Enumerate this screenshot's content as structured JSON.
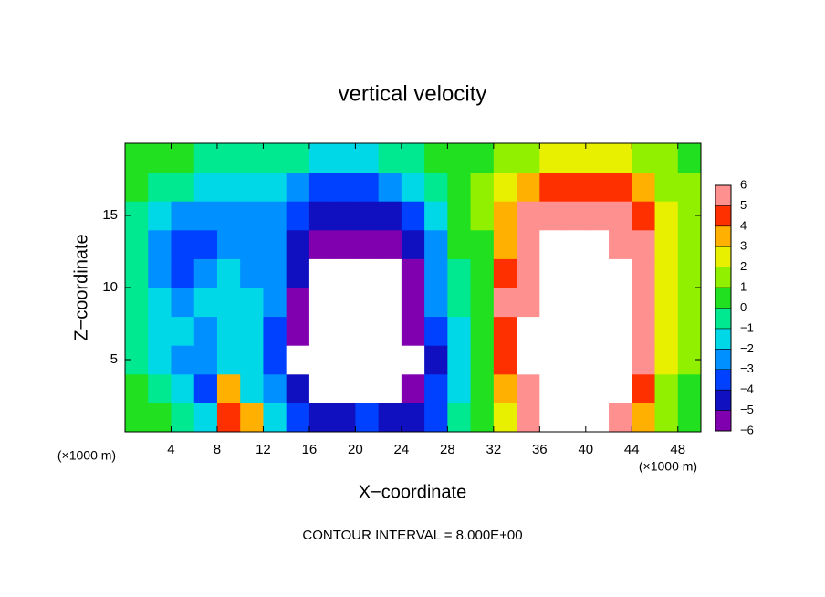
{
  "chart_data": {
    "type": "contour",
    "title": "vertical velocity",
    "x_label": "X−coordinate",
    "y_label": "Z−coordinate",
    "x_unit_left": "(×1000 m)",
    "x_unit_right": "(×1000 m)",
    "footer": "CONTOUR INTERVAL = 8.000E+00",
    "xlim": [
      0,
      50
    ],
    "ylim": [
      0,
      20
    ],
    "xticks": [
      4,
      8,
      12,
      16,
      20,
      24,
      28,
      32,
      36,
      40,
      44,
      48
    ],
    "yticks": [
      5,
      10,
      15
    ],
    "x": [
      1,
      3,
      5,
      7,
      9,
      11,
      13,
      15,
      17,
      19,
      21,
      23,
      25,
      27,
      29,
      31,
      33,
      35,
      37,
      39,
      41,
      43,
      45,
      47,
      49
    ],
    "y": [
      1,
      3,
      5,
      7,
      9,
      11,
      13,
      15,
      17,
      19
    ],
    "z": [
      [
        0,
        0,
        -1,
        -2,
        4,
        3,
        -2,
        -4,
        -5,
        -5,
        -4,
        -5,
        -5,
        -4,
        -1,
        0,
        2,
        5,
        7,
        7,
        7,
        6,
        3,
        1,
        0
      ],
      [
        0,
        -1,
        -2,
        -4,
        3,
        -2,
        -3,
        -5,
        -7,
        -7,
        -7,
        -7,
        -6,
        -4,
        -2,
        0,
        3,
        6,
        7,
        7,
        7,
        7,
        4,
        1,
        0
      ],
      [
        -1,
        -2,
        -3,
        -3,
        -2,
        -2,
        -4,
        -7,
        -7,
        -7,
        -7,
        -7,
        -7,
        -5,
        -2,
        0,
        4,
        7,
        7,
        7,
        7,
        7,
        5,
        2,
        1
      ],
      [
        -1,
        -2,
        -2,
        -3,
        -2,
        -2,
        -4,
        -6,
        -7,
        -7,
        -7,
        -7,
        -6,
        -4,
        -2,
        0,
        4,
        7,
        7,
        7,
        7,
        7,
        5,
        2,
        1
      ],
      [
        -1,
        -2,
        -3,
        -2,
        -2,
        -2,
        -3,
        -6,
        -7,
        -7,
        -7,
        -7,
        -6,
        -3,
        -1,
        0,
        5,
        6,
        7,
        7,
        7,
        7,
        5,
        2,
        1
      ],
      [
        -1,
        -3,
        -4,
        -3,
        -2,
        -3,
        -3,
        -5,
        -7,
        -7,
        -7,
        -7,
        -6,
        -3,
        -1,
        0,
        4,
        6,
        7,
        7,
        7,
        7,
        5,
        2,
        1
      ],
      [
        -1,
        -3,
        -4,
        -4,
        -3,
        -3,
        -3,
        -5,
        -6,
        -6,
        -6,
        -6,
        -5,
        -3,
        0,
        0,
        3,
        5,
        7,
        7,
        7,
        6,
        5,
        2,
        1
      ],
      [
        -1,
        -2,
        -3,
        -3,
        -3,
        -3,
        -3,
        -4,
        -5,
        -5,
        -5,
        -5,
        -4,
        -2,
        0,
        1,
        3,
        5,
        6,
        6,
        6,
        6,
        4,
        2,
        1
      ],
      [
        0,
        -1,
        -1,
        -2,
        -2,
        -2,
        -2,
        -3,
        -4,
        -4,
        -4,
        -3,
        -2,
        -1,
        0,
        1,
        2,
        3,
        4,
        4,
        4,
        4,
        3,
        1,
        1
      ],
      [
        0,
        0,
        0,
        -1,
        -1,
        -1,
        -1,
        -1,
        -2,
        -2,
        -2,
        -1,
        -1,
        0,
        0,
        0,
        1,
        1,
        2,
        2,
        2,
        2,
        1,
        1,
        0
      ]
    ],
    "clim": [
      -6,
      6
    ],
    "cticks": [
      {
        "value": -6,
        "label": "−6"
      },
      {
        "value": -5,
        "label": "−5"
      },
      {
        "value": -4,
        "label": "−4"
      },
      {
        "value": -3,
        "label": "−3"
      },
      {
        "value": -2,
        "label": "−2"
      },
      {
        "value": -1,
        "label": "−1"
      },
      0,
      1,
      2,
      3,
      4,
      5,
      6
    ],
    "colors": [
      "#8000b0",
      "#1010c0",
      "#0040ff",
      "#0090ff",
      "#00d8e8",
      "#00e890",
      "#20e020",
      "#90f000",
      "#e8f000",
      "#ffb000",
      "#ff3000",
      "#ff9090"
    ],
    "out_of_range_color": "#ffffff"
  }
}
